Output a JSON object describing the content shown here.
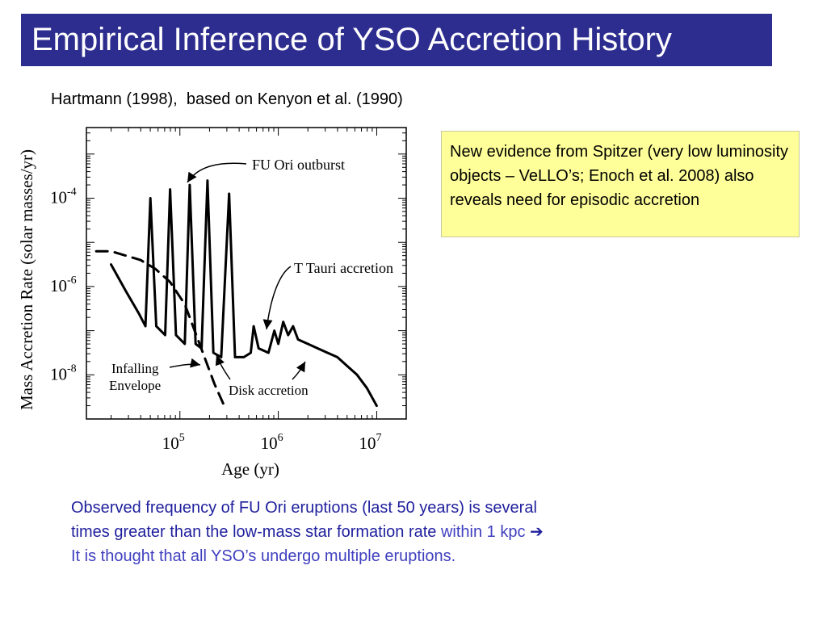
{
  "slide": {
    "title": "Empirical Inference of YSO Accretion History",
    "citation": "Hartmann (1998),  based on Kenyon et al. (1990)",
    "callout": "New evidence from Spitzer (very low luminosity objects – VeLLO’s; Enoch et al. 2008) also reveals need for episodic accretion",
    "bottom": {
      "line1": "Observed frequency of FU Ori eruptions (last 50 years) is several",
      "line2": "times greater than the low-mass star formation rate ",
      "line2_tail": "within 1 kpc",
      "arrow": "➔",
      "line3": "It is thought that all YSO’s undergo multiple eruptions."
    },
    "colors": {
      "title_bg": "#2d2d8f",
      "callout_bg": "#ffff99",
      "bottom_text": "#1f1f9e"
    }
  },
  "chart_data": {
    "type": "line",
    "xlabel": "Age (yr)",
    "ylabel": "Mass  Accretion  Rate  (solar masses/yr)",
    "x_scale": "log",
    "y_scale": "log",
    "xlim_log10": [
      4.05,
      7.3
    ],
    "ylim_log10": [
      -9.0,
      -2.4
    ],
    "x_ticks": [
      {
        "value_log10": 5,
        "base": "10",
        "exp": "5"
      },
      {
        "value_log10": 6,
        "base": "10",
        "exp": "6"
      },
      {
        "value_log10": 7,
        "base": "10",
        "exp": "7"
      }
    ],
    "y_ticks": [
      {
        "value_log10": -4,
        "base": "10",
        "exp": "-4"
      },
      {
        "value_log10": -6,
        "base": "10",
        "exp": "-6"
      },
      {
        "value_log10": -8,
        "base": "10",
        "exp": "-8"
      }
    ],
    "series": [
      {
        "style": "dashed",
        "points_log10": [
          [
            4.15,
            -5.2
          ],
          [
            4.3,
            -5.2
          ],
          [
            4.45,
            -5.3
          ],
          [
            4.6,
            -5.4
          ],
          [
            4.75,
            -5.6
          ],
          [
            4.9,
            -5.9
          ],
          [
            5.05,
            -6.4
          ],
          [
            5.2,
            -7.3
          ],
          [
            5.35,
            -8.2
          ],
          [
            5.45,
            -8.7
          ]
        ]
      },
      {
        "style": "solid",
        "points_log10": [
          [
            4.3,
            -5.5
          ],
          [
            4.45,
            -6.1
          ],
          [
            4.58,
            -6.6
          ],
          [
            4.65,
            -6.9
          ],
          [
            4.7,
            -4.0
          ],
          [
            4.76,
            -6.9
          ],
          [
            4.85,
            -7.1
          ],
          [
            4.9,
            -3.8
          ],
          [
            4.96,
            -7.1
          ],
          [
            5.05,
            -7.3
          ],
          [
            5.1,
            -3.7
          ],
          [
            5.16,
            -7.3
          ],
          [
            5.22,
            -7.4
          ],
          [
            5.28,
            -3.6
          ],
          [
            5.34,
            -7.5
          ],
          [
            5.42,
            -7.6
          ],
          [
            5.5,
            -3.9
          ],
          [
            5.56,
            -7.6
          ],
          [
            5.65,
            -7.6
          ],
          [
            5.72,
            -7.5
          ],
          [
            5.75,
            -6.9
          ],
          [
            5.8,
            -7.4
          ],
          [
            5.9,
            -7.5
          ],
          [
            5.96,
            -7.0
          ],
          [
            6.0,
            -7.3
          ],
          [
            6.05,
            -6.8
          ],
          [
            6.1,
            -7.1
          ],
          [
            6.15,
            -6.9
          ],
          [
            6.2,
            -7.2
          ],
          [
            6.3,
            -7.3
          ],
          [
            6.4,
            -7.4
          ],
          [
            6.5,
            -7.5
          ],
          [
            6.6,
            -7.6
          ],
          [
            6.7,
            -7.8
          ],
          [
            6.8,
            -8.0
          ],
          [
            6.9,
            -8.3
          ],
          [
            7.0,
            -8.7
          ]
        ]
      }
    ],
    "annotations": [
      {
        "text": "FU  Ori  outburst"
      },
      {
        "text": "T  Tauri  accretion"
      },
      {
        "text": "Infalling"
      },
      {
        "text": "Envelope"
      },
      {
        "text": "Disk accretion"
      }
    ],
    "grid": false,
    "legend": "none"
  }
}
